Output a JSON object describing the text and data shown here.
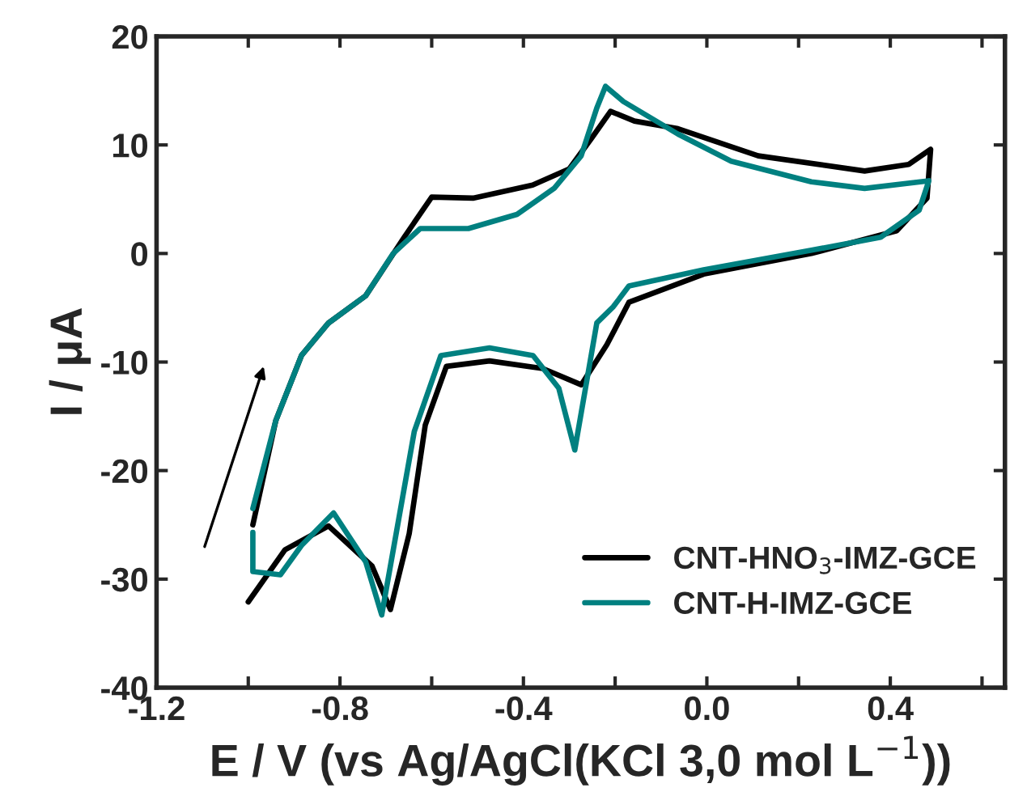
{
  "chart_data": {
    "type": "line",
    "xlabel": "E / V (vs Ag/AgCl(KCl 3,0 mol L$^{−1}$))",
    "ylabel": "I / μA",
    "xlim": [
      -1.2,
      0.65
    ],
    "xticks": [
      -1.2,
      {
        "value": -1.0,
        "label": null
      },
      -0.8,
      {
        "value": -0.6,
        "label": null
      },
      -0.4,
      {
        "value": -0.2,
        "label": null
      },
      {
        "value": 0.0,
        "label": "0.0"
      },
      {
        "value": 0.2,
        "label": null
      },
      0.4,
      {
        "value": 0.6,
        "label": null
      }
    ],
    "ylim": [
      -40,
      20
    ],
    "yticks": [
      -40,
      -30,
      -20,
      -10,
      0,
      10,
      20
    ],
    "grid": false,
    "legend": "bottom right",
    "line_style": "solid",
    "marker": "none",
    "series": [
      {
        "name": "CNT-HNO$_{3}$-IMZ-GCE",
        "color": "#000000",
        "x": [
          -0.99,
          -0.94,
          -0.884,
          -0.825,
          -0.744,
          -0.66,
          -0.6,
          -0.51,
          -0.38,
          -0.3,
          -0.25,
          -0.21,
          -0.158,
          -0.063,
          0.112,
          0.344,
          0.44,
          0.488,
          0.48,
          0.414,
          0.228,
          -0.007,
          -0.17,
          -0.218,
          -0.274,
          -0.358,
          -0.474,
          -0.568,
          -0.614,
          -0.649,
          -0.69,
          -0.73,
          -0.825,
          -0.92,
          -1.0
        ],
        "values": [
          -25,
          -15.4,
          -9.4,
          -6.4,
          -3.9,
          1.5,
          5.2,
          5.1,
          6.3,
          7.8,
          10.7,
          13.1,
          12.2,
          11.5,
          9.0,
          7.6,
          8.2,
          9.6,
          5.1,
          2.1,
          0,
          -1.9,
          -4.5,
          -8.4,
          -12.1,
          -10.6,
          -9.9,
          -10.4,
          -15.8,
          -25.8,
          -32.8,
          -28.8,
          -25.1,
          -27.3,
          -32.1
        ]
      },
      {
        "name": "CNT-H-IMZ-GCE",
        "color": "#008080",
        "x": [
          -0.99,
          -0.94,
          -0.884,
          -0.825,
          -0.744,
          -0.684,
          -0.625,
          -0.52,
          -0.414,
          -0.333,
          -0.274,
          -0.24,
          -0.221,
          -0.182,
          -0.063,
          0.053,
          0.228,
          0.344,
          0.484,
          0.463,
          0.379,
          0.228,
          -0.007,
          -0.17,
          -0.204,
          -0.24,
          -0.288,
          -0.323,
          -0.379,
          -0.474,
          -0.58,
          -0.638,
          -0.709,
          -0.744,
          -0.814,
          -0.884,
          -0.93,
          -0.99,
          -0.99
        ],
        "values": [
          -23.5,
          -15.4,
          -9.4,
          -6.4,
          -3.9,
          0,
          2.3,
          2.3,
          3.6,
          6.0,
          9.0,
          13.4,
          15.4,
          14.0,
          11.0,
          8.5,
          6.6,
          6.0,
          6.7,
          4.0,
          1.5,
          0.3,
          -1.5,
          -3.0,
          -4.9,
          -6.4,
          -18.1,
          -12.4,
          -9.4,
          -8.7,
          -9.4,
          -16.4,
          -33.3,
          -28.4,
          -23.9,
          -26.9,
          -29.6,
          -29.3,
          -25.7
        ]
      }
    ]
  }
}
